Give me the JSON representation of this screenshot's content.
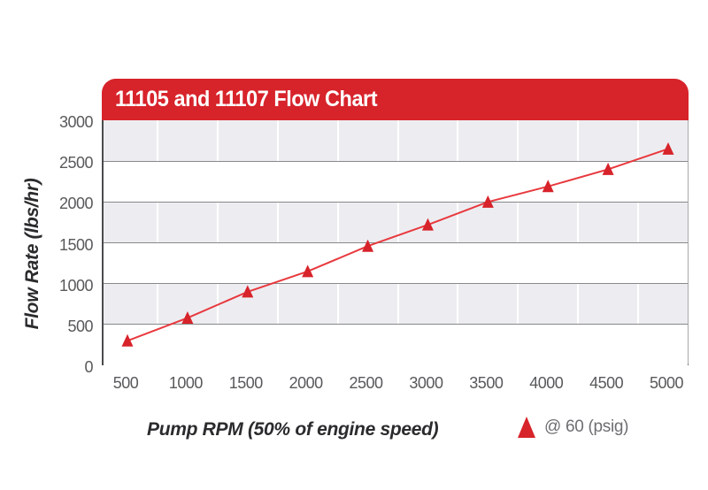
{
  "window": {
    "background": "#ffffff"
  },
  "chart": {
    "title": "11105 and 11107 Flow Chart",
    "header_bg": "#d7232a",
    "header_text_color": "#ffffff"
  },
  "axes": {
    "x_title": "Pump RPM (50% of engine speed)",
    "y_title": "Flow Rate (lbs/hr)"
  },
  "legend": {
    "label": "@ 60 (psig)",
    "marker": "triangle-icon",
    "marker_color": "#d7232a"
  },
  "chart_data": {
    "type": "line",
    "title": "11105 and 11107 Flow Chart",
    "xlabel": "Pump RPM (50% of engine speed)",
    "ylabel": "Flow Rate (lbs/hr)",
    "x": [
      500,
      1000,
      1500,
      2000,
      2500,
      3000,
      3500,
      4000,
      4500,
      5000
    ],
    "series": [
      {
        "name": "@ 60 (psig)",
        "marker": "triangle",
        "marker_color": "#d7232a",
        "line_color": "#e8393e",
        "values": [
          300,
          580,
          900,
          1150,
          1460,
          1720,
          2000,
          2190,
          2400,
          2650
        ]
      }
    ],
    "x_ticks": [
      500,
      1000,
      1500,
      2000,
      2500,
      3000,
      3500,
      4000,
      4500,
      5000
    ],
    "y_ticks": [
      0,
      500,
      1000,
      1500,
      2000,
      2500,
      3000
    ],
    "xlim": [
      500,
      5000
    ],
    "ylim": [
      0,
      3000
    ],
    "grid": {
      "horizontal_lines": true,
      "band_fill": true,
      "band_colors": [
        "#ededf1",
        "#ffffff"
      ],
      "gridline_color": "#87888a",
      "vertical_line_color": "#ffffff"
    },
    "legend_position": "bottom-right"
  },
  "colors": {
    "accent_red": "#d7232a",
    "band_gray": "#ededf1",
    "gridline": "#87888a",
    "tick_label": "#58595b",
    "axis_title": "#2b2b2d",
    "legend_text": "#6d6e71",
    "plot_border_dark": "#4a4b4d",
    "plot_border_light": "#a7a9ac"
  }
}
